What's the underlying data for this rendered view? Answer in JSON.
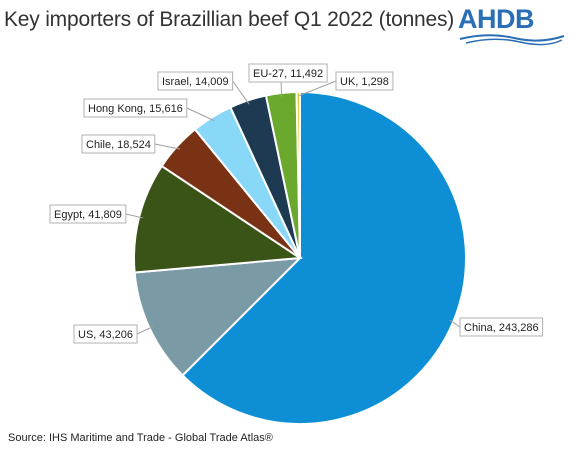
{
  "title": "Key importers of Brazillian beef Q1 2022 (tonnes)",
  "logo": {
    "text": "AHDB",
    "color": "#2a6eb6"
  },
  "source": "Source: IHS Maritime and Trade - Global Trade Atlas®",
  "chart_data": {
    "type": "pie",
    "title": "Key importers of Brazillian beef Q1 2022 (tonnes)",
    "unit": "tonnes",
    "slices": [
      {
        "name": "China",
        "value": 243286,
        "label": "China, 243,286",
        "color": "#0e8fd5"
      },
      {
        "name": "US",
        "value": 43206,
        "label": "US, 43,206",
        "color": "#7a9aa5"
      },
      {
        "name": "Egypt",
        "value": 41809,
        "label": "Egypt, 41,809",
        "color": "#3a5316"
      },
      {
        "name": "Chile",
        "value": 18524,
        "label": "Chile, 18,524",
        "color": "#7a3214"
      },
      {
        "name": "Hong Kong",
        "value": 15616,
        "label": "Hong Kong, 15,616",
        "color": "#8ad8f8"
      },
      {
        "name": "Israel",
        "value": 14009,
        "label": "Israel, 14,009",
        "color": "#1d3a52"
      },
      {
        "name": "EU-27",
        "value": 11492,
        "label": "EU-27, 11,492",
        "color": "#6aa82e"
      },
      {
        "name": "UK",
        "value": 1298,
        "label": "UK, 1,298",
        "color": "#e8c838"
      }
    ],
    "start_angle": "12 o'clock",
    "direction": "clockwise",
    "legend": "none (data labels with leader lines)"
  }
}
